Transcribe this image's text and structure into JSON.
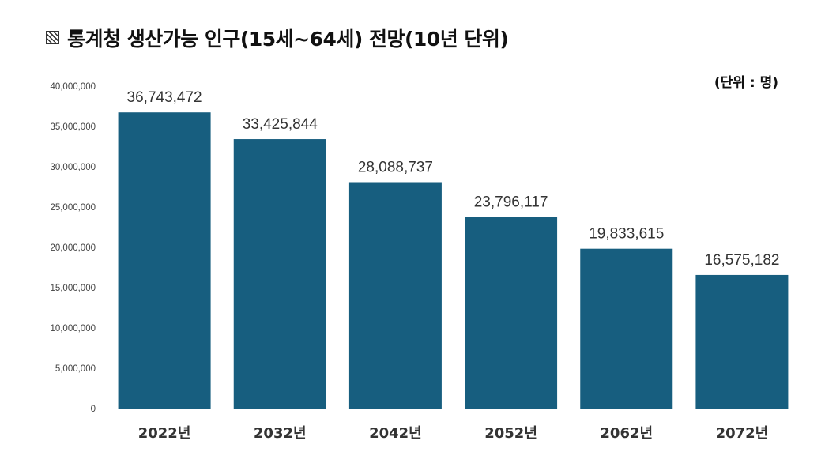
{
  "title_marker_icon": "hatched-square-icon",
  "chart_data": {
    "type": "bar",
    "title": "통계청 생산가능 인구(15세~64세) 전망(10년 단위)",
    "unit_label": "(단위 : 명)",
    "categories": [
      "2022년",
      "2032년",
      "2042년",
      "2052년",
      "2062년",
      "2072년"
    ],
    "values": [
      36743472,
      33425844,
      28088737,
      23796117,
      19833615,
      16575182
    ],
    "value_labels": [
      "36,743,472",
      "33,425,844",
      "28,088,737",
      "23,796,117",
      "19,833,615",
      "16,575,182"
    ],
    "ylim": [
      0,
      40000000
    ],
    "yticks": [
      0,
      5000000,
      10000000,
      15000000,
      20000000,
      25000000,
      30000000,
      35000000,
      40000000
    ],
    "ytick_labels": [
      "0",
      "5,000,000",
      "10,000,000",
      "15,000,000",
      "20,000,000",
      "25,000,000",
      "30,000,000",
      "35,000,000",
      "40,000,000"
    ],
    "bar_color": "#175e7f",
    "grid": false,
    "legend": "none"
  }
}
